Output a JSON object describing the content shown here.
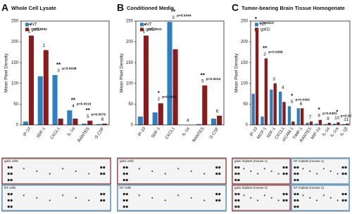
{
  "chart_data": [
    {
      "type": "bar",
      "panel": "A",
      "title": "Whole Cell Lysate",
      "ylabel": "Mean Pixel Density",
      "categories": [
        "IP-10",
        "SDF-1",
        "CXCL1",
        "IL-1α",
        "RANTES",
        "G-CSF"
      ],
      "series": [
        {
          "name": "NT",
          "color": "#2e7fc1",
          "values": [
            8,
            117,
            120,
            35,
            3,
            2
          ]
        },
        {
          "name": "gal1i",
          "color": "#8b1a1a",
          "values": [
            215,
            180,
            15,
            15,
            10,
            3
          ]
        }
      ],
      "bar_numbers": [
        1,
        2,
        3,
        4,
        5,
        6
      ],
      "annotations": [
        {
          "at": "IP-10",
          "stars": "**",
          "p": "p=0.0052"
        },
        {
          "at": "CXCL1",
          "stars": "**",
          "p": "p=0.0038"
        },
        {
          "at": "IL-1α",
          "stars": "**",
          "p": "p=0.0019"
        },
        {
          "at": "RANTES",
          "stars": "**",
          "p": "p=0.0076"
        }
      ],
      "ylim": [
        0,
        250
      ],
      "yticks": [
        0,
        50,
        100,
        150,
        200,
        250
      ],
      "blot_labels": [
        "gal1i cells",
        "NT cells"
      ]
    },
    {
      "type": "bar",
      "panel": "B",
      "title": "Conditioned Media",
      "ylabel": "Mean Pixel Density",
      "categories": [
        "IP-10",
        "SDF-1",
        "CXCL1",
        "IL-1α",
        "RANTES",
        "G-CSF"
      ],
      "series": [
        {
          "name": "NT",
          "color": "#2e7fc1",
          "values": [
            20,
            30,
            248,
            0,
            2,
            15
          ]
        },
        {
          "name": "gal1i",
          "color": "#8b1a1a",
          "values": [
            215,
            52,
            182,
            0,
            95,
            22
          ]
        }
      ],
      "bar_numbers": [
        1,
        2,
        3,
        4,
        5,
        6
      ],
      "annotations": [
        {
          "at": "IP-10",
          "stars": "**",
          "p": "p=0.0011"
        },
        {
          "at": "SDF-1",
          "stars": "*",
          "p": "p=0.0396"
        },
        {
          "at": "CXCL1",
          "stars": "**",
          "p": "p=0.0044"
        },
        {
          "at": "RANTES",
          "stars": "**",
          "p": "p=0.0014"
        }
      ],
      "ylim": [
        0,
        250
      ],
      "yticks": [
        0,
        50,
        100,
        150,
        200,
        250
      ],
      "blot_labels": [
        "gal1i cells",
        "NT cells"
      ]
    },
    {
      "type": "bar",
      "panel": "C",
      "title": "Tumor-bearing Brain Tissue Homogenate",
      "ylabel": "Mean Pixel Density",
      "categories": [
        "IP-10",
        "MCP-1",
        "SDF-1",
        "CXCL1",
        "sICAM-1",
        "TIMP-1",
        "RANTES",
        "MIP-1α",
        "IL-1α",
        "IL-1ra",
        "IL-1β"
      ],
      "series": [
        {
          "name": "NT",
          "color": "#2e7fc1",
          "values": [
            75,
            20,
            85,
            80,
            45,
            40,
            5,
            3,
            2,
            3,
            2
          ]
        },
        {
          "name": "gal1i",
          "color": "#8b1a1a",
          "values": [
            230,
            160,
            100,
            55,
            8,
            40,
            8,
            12,
            5,
            6,
            3
          ]
        }
      ],
      "bar_numbers": [
        1,
        2,
        3,
        4,
        5,
        6,
        7,
        8,
        9,
        10,
        11
      ],
      "annotations": [
        {
          "at": "IP-10",
          "stars": "*",
          "p": "p=0.0413"
        },
        {
          "at": "MCP-1",
          "stars": "**",
          "p": "p=0.0088"
        },
        {
          "at": "sICAM-1",
          "stars": "*",
          "p": "p=0.0362"
        },
        {
          "at": "MIP-1α",
          "stars": "*",
          "p": "p=0.0451"
        },
        {
          "at": "IL-1ra",
          "stars": "*",
          "p": "p=0.0279"
        }
      ],
      "ylim": [
        0,
        250
      ],
      "yticks": [
        0,
        50,
        100,
        150,
        200,
        250
      ],
      "blot_labels": [
        "gal1i implant (mouse 1)",
        "NT implant (mouse 1)",
        "gal1i implant (mouse 2)",
        "NT implant (mouse 2)"
      ]
    }
  ]
}
